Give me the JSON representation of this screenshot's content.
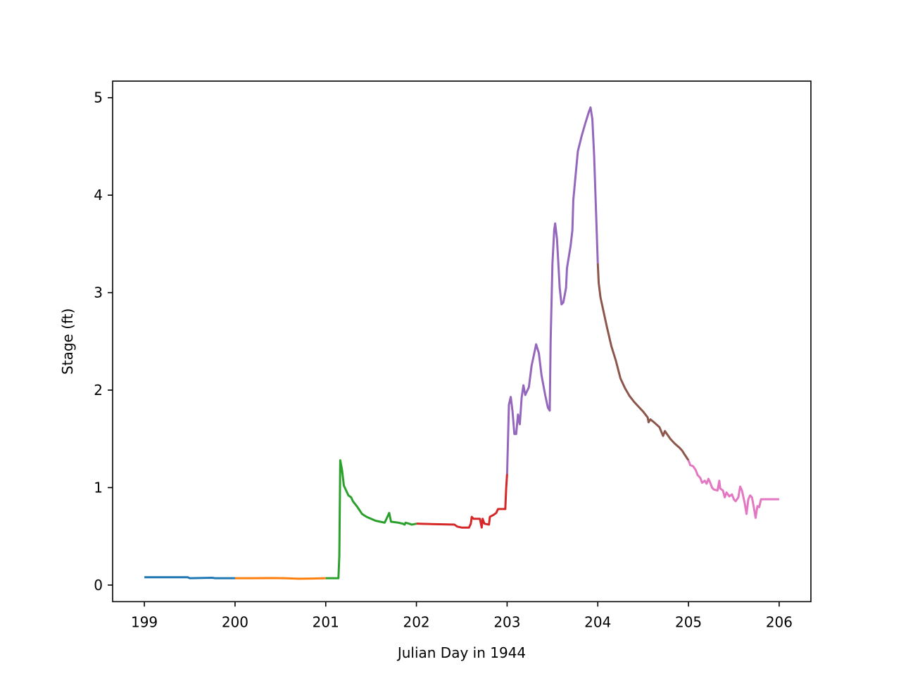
{
  "chart_data": {
    "type": "line",
    "title": "",
    "xlabel": "Julian Day in 1944",
    "ylabel": "Stage (ft)",
    "xlim": [
      198.65,
      206.35
    ],
    "ylim": [
      -0.17,
      5.17
    ],
    "xticks": [
      199,
      200,
      201,
      202,
      203,
      204,
      205,
      206
    ],
    "xtick_labels": [
      "199",
      "200",
      "201",
      "202",
      "203",
      "204",
      "205",
      "206"
    ],
    "yticks": [
      0,
      1,
      2,
      3,
      4,
      5
    ],
    "ytick_labels": [
      "0",
      "1",
      "2",
      "3",
      "4",
      "5"
    ],
    "grid": false,
    "legend": "none",
    "series": [
      {
        "color": "#1f77b4",
        "points": [
          [
            199.0,
            0.08
          ],
          [
            199.25,
            0.08
          ],
          [
            199.48,
            0.08
          ],
          [
            199.5,
            0.07
          ],
          [
            199.75,
            0.075
          ],
          [
            199.78,
            0.07
          ],
          [
            199.9,
            0.07
          ],
          [
            200.0,
            0.07
          ]
        ]
      },
      {
        "color": "#ff7f0e",
        "points": [
          [
            200.0,
            0.07
          ],
          [
            200.2,
            0.07
          ],
          [
            200.4,
            0.072
          ],
          [
            200.55,
            0.07
          ],
          [
            200.7,
            0.065
          ],
          [
            200.85,
            0.067
          ],
          [
            201.0,
            0.07
          ]
        ]
      },
      {
        "color": "#2ca02c",
        "points": [
          [
            201.0,
            0.07
          ],
          [
            201.14,
            0.07
          ],
          [
            201.15,
            0.3
          ],
          [
            201.16,
            1.28
          ],
          [
            201.18,
            1.18
          ],
          [
            201.2,
            1.02
          ],
          [
            201.25,
            0.92
          ],
          [
            201.28,
            0.9
          ],
          [
            201.3,
            0.86
          ],
          [
            201.35,
            0.8
          ],
          [
            201.4,
            0.73
          ],
          [
            201.45,
            0.7
          ],
          [
            201.5,
            0.68
          ],
          [
            201.55,
            0.66
          ],
          [
            201.6,
            0.65
          ],
          [
            201.65,
            0.64
          ],
          [
            201.68,
            0.7
          ],
          [
            201.7,
            0.74
          ],
          [
            201.72,
            0.65
          ],
          [
            201.8,
            0.64
          ],
          [
            201.85,
            0.63
          ],
          [
            201.87,
            0.62
          ],
          [
            201.88,
            0.64
          ],
          [
            201.92,
            0.63
          ],
          [
            201.95,
            0.62
          ],
          [
            202.0,
            0.63
          ]
        ]
      },
      {
        "color": "#d62728",
        "points": [
          [
            202.0,
            0.63
          ],
          [
            202.2,
            0.625
          ],
          [
            202.42,
            0.62
          ],
          [
            202.45,
            0.6
          ],
          [
            202.5,
            0.59
          ],
          [
            202.58,
            0.59
          ],
          [
            202.6,
            0.63
          ],
          [
            202.61,
            0.7
          ],
          [
            202.63,
            0.68
          ],
          [
            202.7,
            0.68
          ],
          [
            202.72,
            0.59
          ],
          [
            202.73,
            0.68
          ],
          [
            202.75,
            0.63
          ],
          [
            202.8,
            0.62
          ],
          [
            202.81,
            0.7
          ],
          [
            202.85,
            0.72
          ],
          [
            202.88,
            0.74
          ],
          [
            202.9,
            0.78
          ],
          [
            202.95,
            0.78
          ],
          [
            202.98,
            0.78
          ],
          [
            202.99,
            1.0
          ],
          [
            203.0,
            1.14
          ]
        ]
      },
      {
        "color": "#9467bd",
        "points": [
          [
            203.0,
            1.14
          ],
          [
            203.02,
            1.85
          ],
          [
            203.04,
            1.93
          ],
          [
            203.06,
            1.78
          ],
          [
            203.08,
            1.55
          ],
          [
            203.1,
            1.55
          ],
          [
            203.12,
            1.75
          ],
          [
            203.14,
            1.65
          ],
          [
            203.16,
            1.92
          ],
          [
            203.18,
            2.05
          ],
          [
            203.2,
            1.95
          ],
          [
            203.24,
            2.03
          ],
          [
            203.27,
            2.25
          ],
          [
            203.3,
            2.38
          ],
          [
            203.32,
            2.47
          ],
          [
            203.35,
            2.38
          ],
          [
            203.38,
            2.15
          ],
          [
            203.42,
            1.95
          ],
          [
            203.45,
            1.82
          ],
          [
            203.47,
            1.79
          ],
          [
            203.48,
            2.5
          ],
          [
            203.5,
            3.3
          ],
          [
            203.52,
            3.65
          ],
          [
            203.53,
            3.71
          ],
          [
            203.55,
            3.55
          ],
          [
            203.58,
            3.05
          ],
          [
            203.6,
            2.88
          ],
          [
            203.62,
            2.9
          ],
          [
            203.65,
            3.05
          ],
          [
            203.66,
            3.25
          ],
          [
            203.7,
            3.48
          ],
          [
            203.72,
            3.64
          ],
          [
            203.73,
            3.95
          ],
          [
            203.78,
            4.45
          ],
          [
            203.82,
            4.6
          ],
          [
            203.86,
            4.73
          ],
          [
            203.9,
            4.85
          ],
          [
            203.92,
            4.9
          ],
          [
            203.94,
            4.78
          ],
          [
            203.96,
            4.4
          ],
          [
            203.98,
            3.85
          ],
          [
            204.0,
            3.3
          ]
        ]
      },
      {
        "color": "#8c564b",
        "points": [
          [
            204.0,
            3.3
          ],
          [
            204.01,
            3.1
          ],
          [
            204.03,
            2.95
          ],
          [
            204.1,
            2.65
          ],
          [
            204.15,
            2.45
          ],
          [
            204.2,
            2.3
          ],
          [
            204.25,
            2.12
          ],
          [
            204.3,
            2.02
          ],
          [
            204.35,
            1.94
          ],
          [
            204.4,
            1.88
          ],
          [
            204.5,
            1.78
          ],
          [
            204.55,
            1.72
          ],
          [
            204.56,
            1.67
          ],
          [
            204.58,
            1.7
          ],
          [
            204.62,
            1.67
          ],
          [
            204.68,
            1.62
          ],
          [
            204.72,
            1.53
          ],
          [
            204.74,
            1.58
          ],
          [
            204.8,
            1.5
          ],
          [
            204.85,
            1.45
          ],
          [
            204.9,
            1.41
          ],
          [
            204.93,
            1.38
          ],
          [
            204.95,
            1.35
          ],
          [
            205.0,
            1.28
          ]
        ]
      },
      {
        "color": "#e377c2",
        "points": [
          [
            205.0,
            1.28
          ],
          [
            205.02,
            1.23
          ],
          [
            205.05,
            1.22
          ],
          [
            205.08,
            1.18
          ],
          [
            205.1,
            1.13
          ],
          [
            205.13,
            1.1
          ],
          [
            205.15,
            1.05
          ],
          [
            205.18,
            1.07
          ],
          [
            205.2,
            1.04
          ],
          [
            205.22,
            1.09
          ],
          [
            205.24,
            1.05
          ],
          [
            205.26,
            1.0
          ],
          [
            205.28,
            0.98
          ],
          [
            205.32,
            0.97
          ],
          [
            205.34,
            1.07
          ],
          [
            205.35,
            0.99
          ],
          [
            205.38,
            0.97
          ],
          [
            205.4,
            0.9
          ],
          [
            205.42,
            0.95
          ],
          [
            205.45,
            0.91
          ],
          [
            205.48,
            0.93
          ],
          [
            205.5,
            0.88
          ],
          [
            205.52,
            0.86
          ],
          [
            205.55,
            0.9
          ],
          [
            205.57,
            1.01
          ],
          [
            205.59,
            0.97
          ],
          [
            205.62,
            0.84
          ],
          [
            205.64,
            0.73
          ],
          [
            205.66,
            0.88
          ],
          [
            205.68,
            0.92
          ],
          [
            205.7,
            0.9
          ],
          [
            205.72,
            0.8
          ],
          [
            205.74,
            0.69
          ],
          [
            205.76,
            0.81
          ],
          [
            205.78,
            0.8
          ],
          [
            205.8,
            0.88
          ],
          [
            206.0,
            0.88
          ]
        ]
      }
    ]
  }
}
